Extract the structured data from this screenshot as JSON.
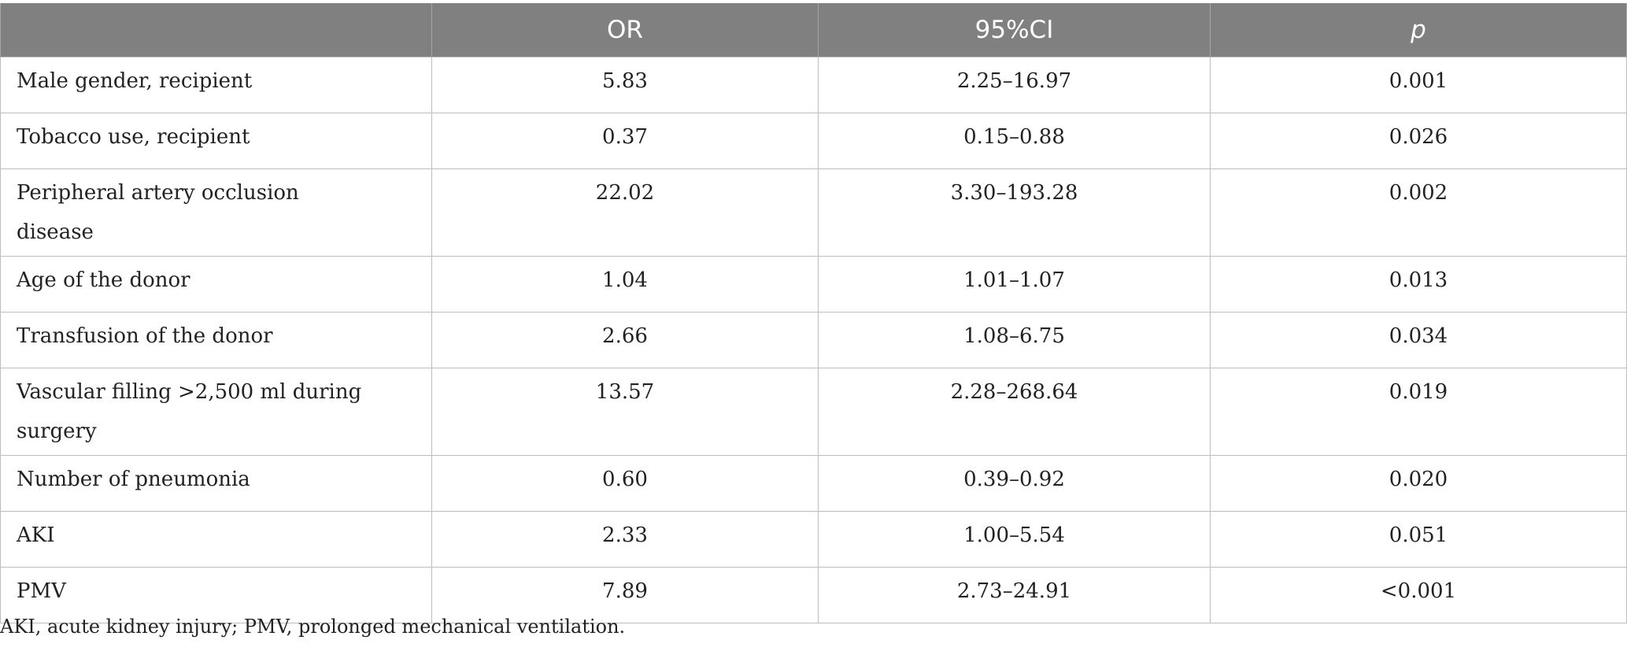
{
  "table": {
    "headers": [
      "",
      "OR",
      "95%CI",
      "p"
    ],
    "rows": [
      {
        "label": "Male gender, recipient",
        "or": "5.83",
        "ci": "2.25–16.97",
        "p": "0.001"
      },
      {
        "label": "Tobacco use, recipient",
        "or": "0.37",
        "ci": "0.15–0.88",
        "p": "0.026"
      },
      {
        "label_lines": [
          "Peripheral artery occlusion",
          "disease"
        ],
        "or": "22.02",
        "ci": "3.30–193.28",
        "p": "0.002"
      },
      {
        "label": "Age of the donor",
        "or": "1.04",
        "ci": "1.01–1.07",
        "p": "0.013"
      },
      {
        "label": "Transfusion of the donor",
        "or": "2.66",
        "ci": "1.08–6.75",
        "p": "0.034"
      },
      {
        "label_lines": [
          "Vascular filling >2,500 ml during",
          "surgery"
        ],
        "or": "13.57",
        "ci": "2.28–268.64",
        "p": "0.019"
      },
      {
        "label": "Number of pneumonia",
        "or": "0.60",
        "ci": "0.39–0.92",
        "p": "0.020"
      },
      {
        "label": "AKI",
        "or": "2.33",
        "ci": "1.00–5.54",
        "p": "0.051"
      },
      {
        "label": "PMV",
        "or": "7.89",
        "ci": "2.73–24.91",
        "p": "<0.001"
      }
    ]
  },
  "footnote": "AKI, acute kidney injury; PMV, prolonged mechanical ventilation.",
  "colors": {
    "header_bg": "#808080",
    "header_text": "#ffffff",
    "grid": "#bdbdbd",
    "body_text": "#222222"
  }
}
